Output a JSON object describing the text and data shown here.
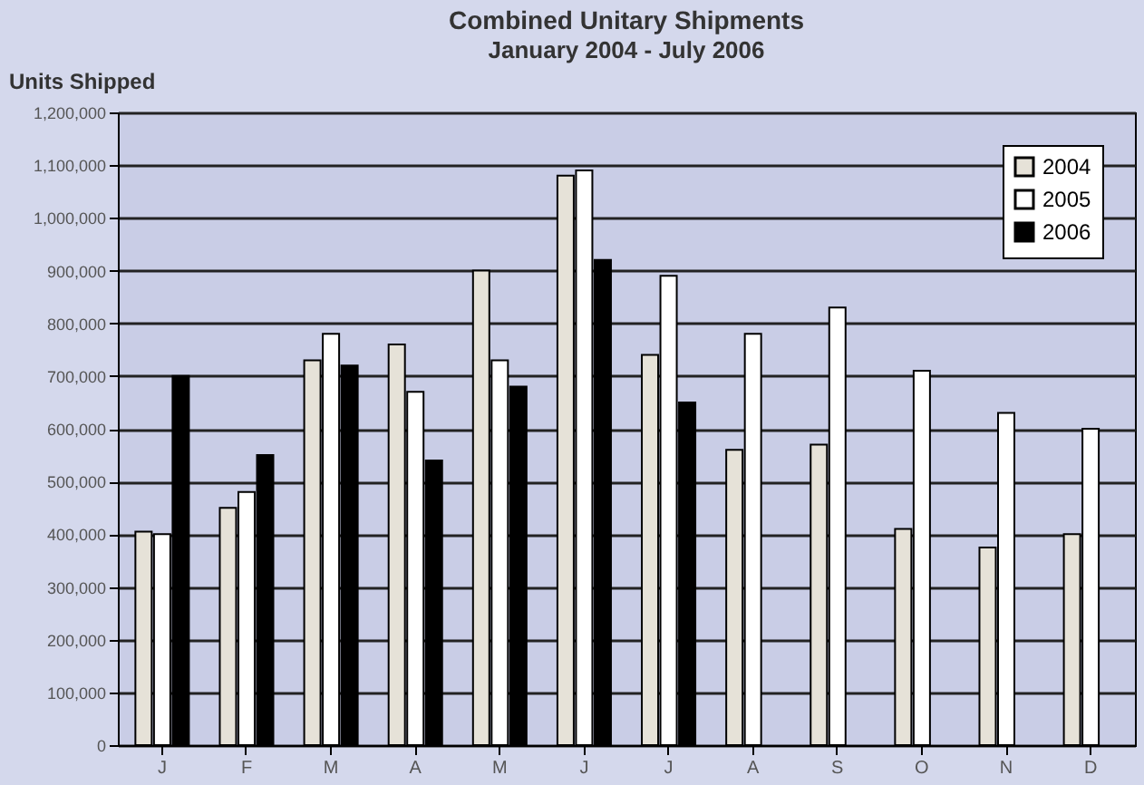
{
  "chart_data": {
    "type": "bar",
    "title": "Combined Unitary Shipments",
    "subtitle": "January 2004 - July 2006",
    "ylabel": "Units Shipped",
    "categories": [
      "J",
      "F",
      "M",
      "A",
      "M",
      "J",
      "J",
      "A",
      "S",
      "O",
      "N",
      "D"
    ],
    "series": [
      {
        "name": "2004",
        "color": "#e6e2d8",
        "values": [
          405000,
          450000,
          730000,
          760000,
          900000,
          1080000,
          740000,
          560000,
          570000,
          410000,
          375000,
          400000
        ]
      },
      {
        "name": "2005",
        "color": "#ffffff",
        "values": [
          400000,
          480000,
          780000,
          670000,
          730000,
          1090000,
          890000,
          780000,
          830000,
          710000,
          630000,
          600000
        ]
      },
      {
        "name": "2006",
        "color": "#000000",
        "values": [
          700000,
          550000,
          720000,
          540000,
          680000,
          920000,
          650000,
          null,
          null,
          null,
          null,
          null
        ]
      }
    ],
    "ylim": [
      0,
      1200000
    ],
    "yticks": [
      0,
      {
        "value": 100000,
        "label": "100,000"
      },
      {
        "value": 200000,
        "label": "200,000"
      },
      {
        "value": 300000,
        "label": "300,000"
      },
      {
        "value": 400000,
        "label": "400,000"
      },
      {
        "value": 500000,
        "label": "500,000"
      },
      {
        "value": 600000,
        "label": "600,000"
      },
      {
        "value": 700000,
        "label": "700,000"
      },
      {
        "value": 800000,
        "label": "800,000"
      },
      {
        "value": 900000,
        "label": "900,000"
      },
      {
        "value": 1000000,
        "label": "1,000,000"
      },
      {
        "value": 1100000,
        "label": "1,100,000"
      },
      {
        "value": 1200000,
        "label": "1,200,000"
      }
    ],
    "grid": "y",
    "legend": "top right"
  }
}
